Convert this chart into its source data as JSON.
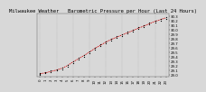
{
  "title": "Barometric Pressure per Hour (Last 24 Hours)",
  "hours": [
    0,
    1,
    2,
    3,
    4,
    5,
    6,
    7,
    8,
    9,
    10,
    11,
    12,
    13,
    14,
    15,
    16,
    17,
    18,
    19,
    20,
    21,
    22,
    23
  ],
  "pressure_line": [
    29.02,
    29.04,
    29.07,
    29.1,
    29.14,
    29.2,
    29.28,
    29.35,
    29.42,
    29.5,
    29.58,
    29.65,
    29.72,
    29.78,
    29.83,
    29.88,
    29.93,
    29.98,
    30.03,
    30.08,
    30.13,
    30.18,
    30.22,
    30.26
  ],
  "scatter_x": [
    0,
    0,
    0,
    1,
    1,
    2,
    2,
    3,
    3,
    4,
    4,
    5,
    5,
    6,
    6,
    7,
    7,
    8,
    8,
    9,
    9,
    10,
    10,
    11,
    11,
    12,
    12,
    13,
    13,
    14,
    14,
    15,
    15,
    16,
    16,
    17,
    17,
    18,
    18,
    19,
    19,
    20,
    20,
    21,
    21,
    22,
    22,
    23,
    23
  ],
  "scatter_y": [
    29.0,
    29.02,
    29.04,
    29.03,
    29.06,
    29.06,
    29.09,
    29.09,
    29.12,
    29.12,
    29.16,
    29.18,
    29.22,
    29.26,
    29.3,
    29.33,
    29.37,
    29.4,
    29.44,
    29.48,
    29.52,
    29.56,
    29.6,
    29.63,
    29.67,
    29.7,
    29.74,
    29.76,
    29.8,
    29.81,
    29.85,
    29.86,
    29.9,
    29.91,
    29.95,
    29.96,
    30.0,
    30.01,
    30.05,
    30.06,
    30.1,
    30.11,
    30.15,
    30.16,
    30.2,
    30.2,
    30.24,
    30.24,
    30.28
  ],
  "ylim_min": 28.95,
  "ylim_max": 30.35,
  "ytick_values": [
    29.0,
    29.1,
    29.2,
    29.3,
    29.4,
    29.5,
    29.6,
    29.7,
    29.8,
    29.9,
    30.0,
    30.1,
    30.2,
    30.3
  ],
  "grid_hours": [
    0,
    3,
    6,
    9,
    12,
    15,
    18,
    21,
    23
  ],
  "bg_color": "#d8d8d8",
  "plot_bg": "#d8d8d8",
  "scatter_color": "#000000",
  "line_color": "#cc0000",
  "grid_color": "#888888",
  "title_fontsize": 4.0,
  "tick_fontsize": 2.8,
  "marker_size": 0.9,
  "line_width": 0.55,
  "title_text": "Milwaukee Weather   Barometric Pressure per Hour (Last 24 Hours)"
}
